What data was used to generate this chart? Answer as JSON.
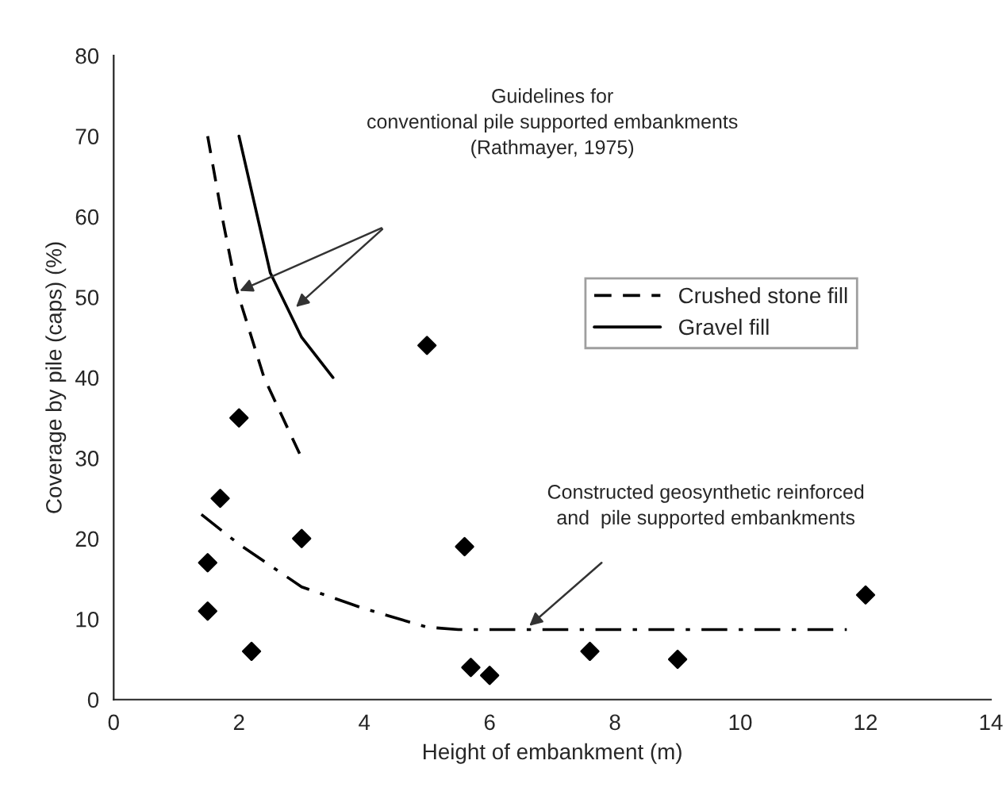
{
  "chart_data": {
    "type": "scatter",
    "xlabel": "Height of embankment (m)",
    "ylabel": "Coverage by pile (caps) (%)",
    "xlim": [
      0,
      14
    ],
    "xticks": [
      0,
      2,
      4,
      6,
      8,
      10,
      12,
      14
    ],
    "ylim": [
      0,
      80
    ],
    "yticks": [
      0,
      10,
      20,
      30,
      40,
      50,
      60,
      70,
      80
    ],
    "grid": false,
    "legend": "right",
    "series": [
      {
        "color": "#000000",
        "marker": "diamond",
        "x": [
          1.5,
          1.5,
          1.7,
          2,
          2.2,
          3,
          5,
          5.6,
          5.7,
          6,
          7.6,
          9,
          12
        ],
        "values": [
          17,
          11,
          25,
          35,
          6,
          20,
          44,
          19,
          4,
          3,
          6,
          5,
          13
        ]
      },
      {
        "type": "line",
        "name": "Crushed stone fill",
        "color": "#000000",
        "line_style": "dashed",
        "marker": "none",
        "x": [
          1.5,
          1.73,
          1.96,
          2.4,
          3
        ],
        "values": [
          70,
          60,
          51,
          40,
          30
        ]
      },
      {
        "type": "line",
        "name": "Gravel fill",
        "color": "#000000",
        "line_style": "solid",
        "marker": "none",
        "x": [
          2,
          2.5,
          3,
          3.5
        ],
        "values": [
          70,
          53,
          45,
          40
        ]
      },
      {
        "type": "line",
        "color": "#000000",
        "line_style": "dashdot",
        "marker": "none",
        "x": [
          1.4,
          2,
          3,
          4,
          5,
          5.5,
          11.7
        ],
        "values": [
          23,
          19.3,
          14,
          11.3,
          9,
          8.7,
          8.7
        ]
      }
    ],
    "annotations": [
      "Guidelines for\nconventional pile supported embankments\n(Rathmayer, 1975)",
      "Constructed geosynthetic reinforced\nand  pile supported embankments"
    ]
  }
}
